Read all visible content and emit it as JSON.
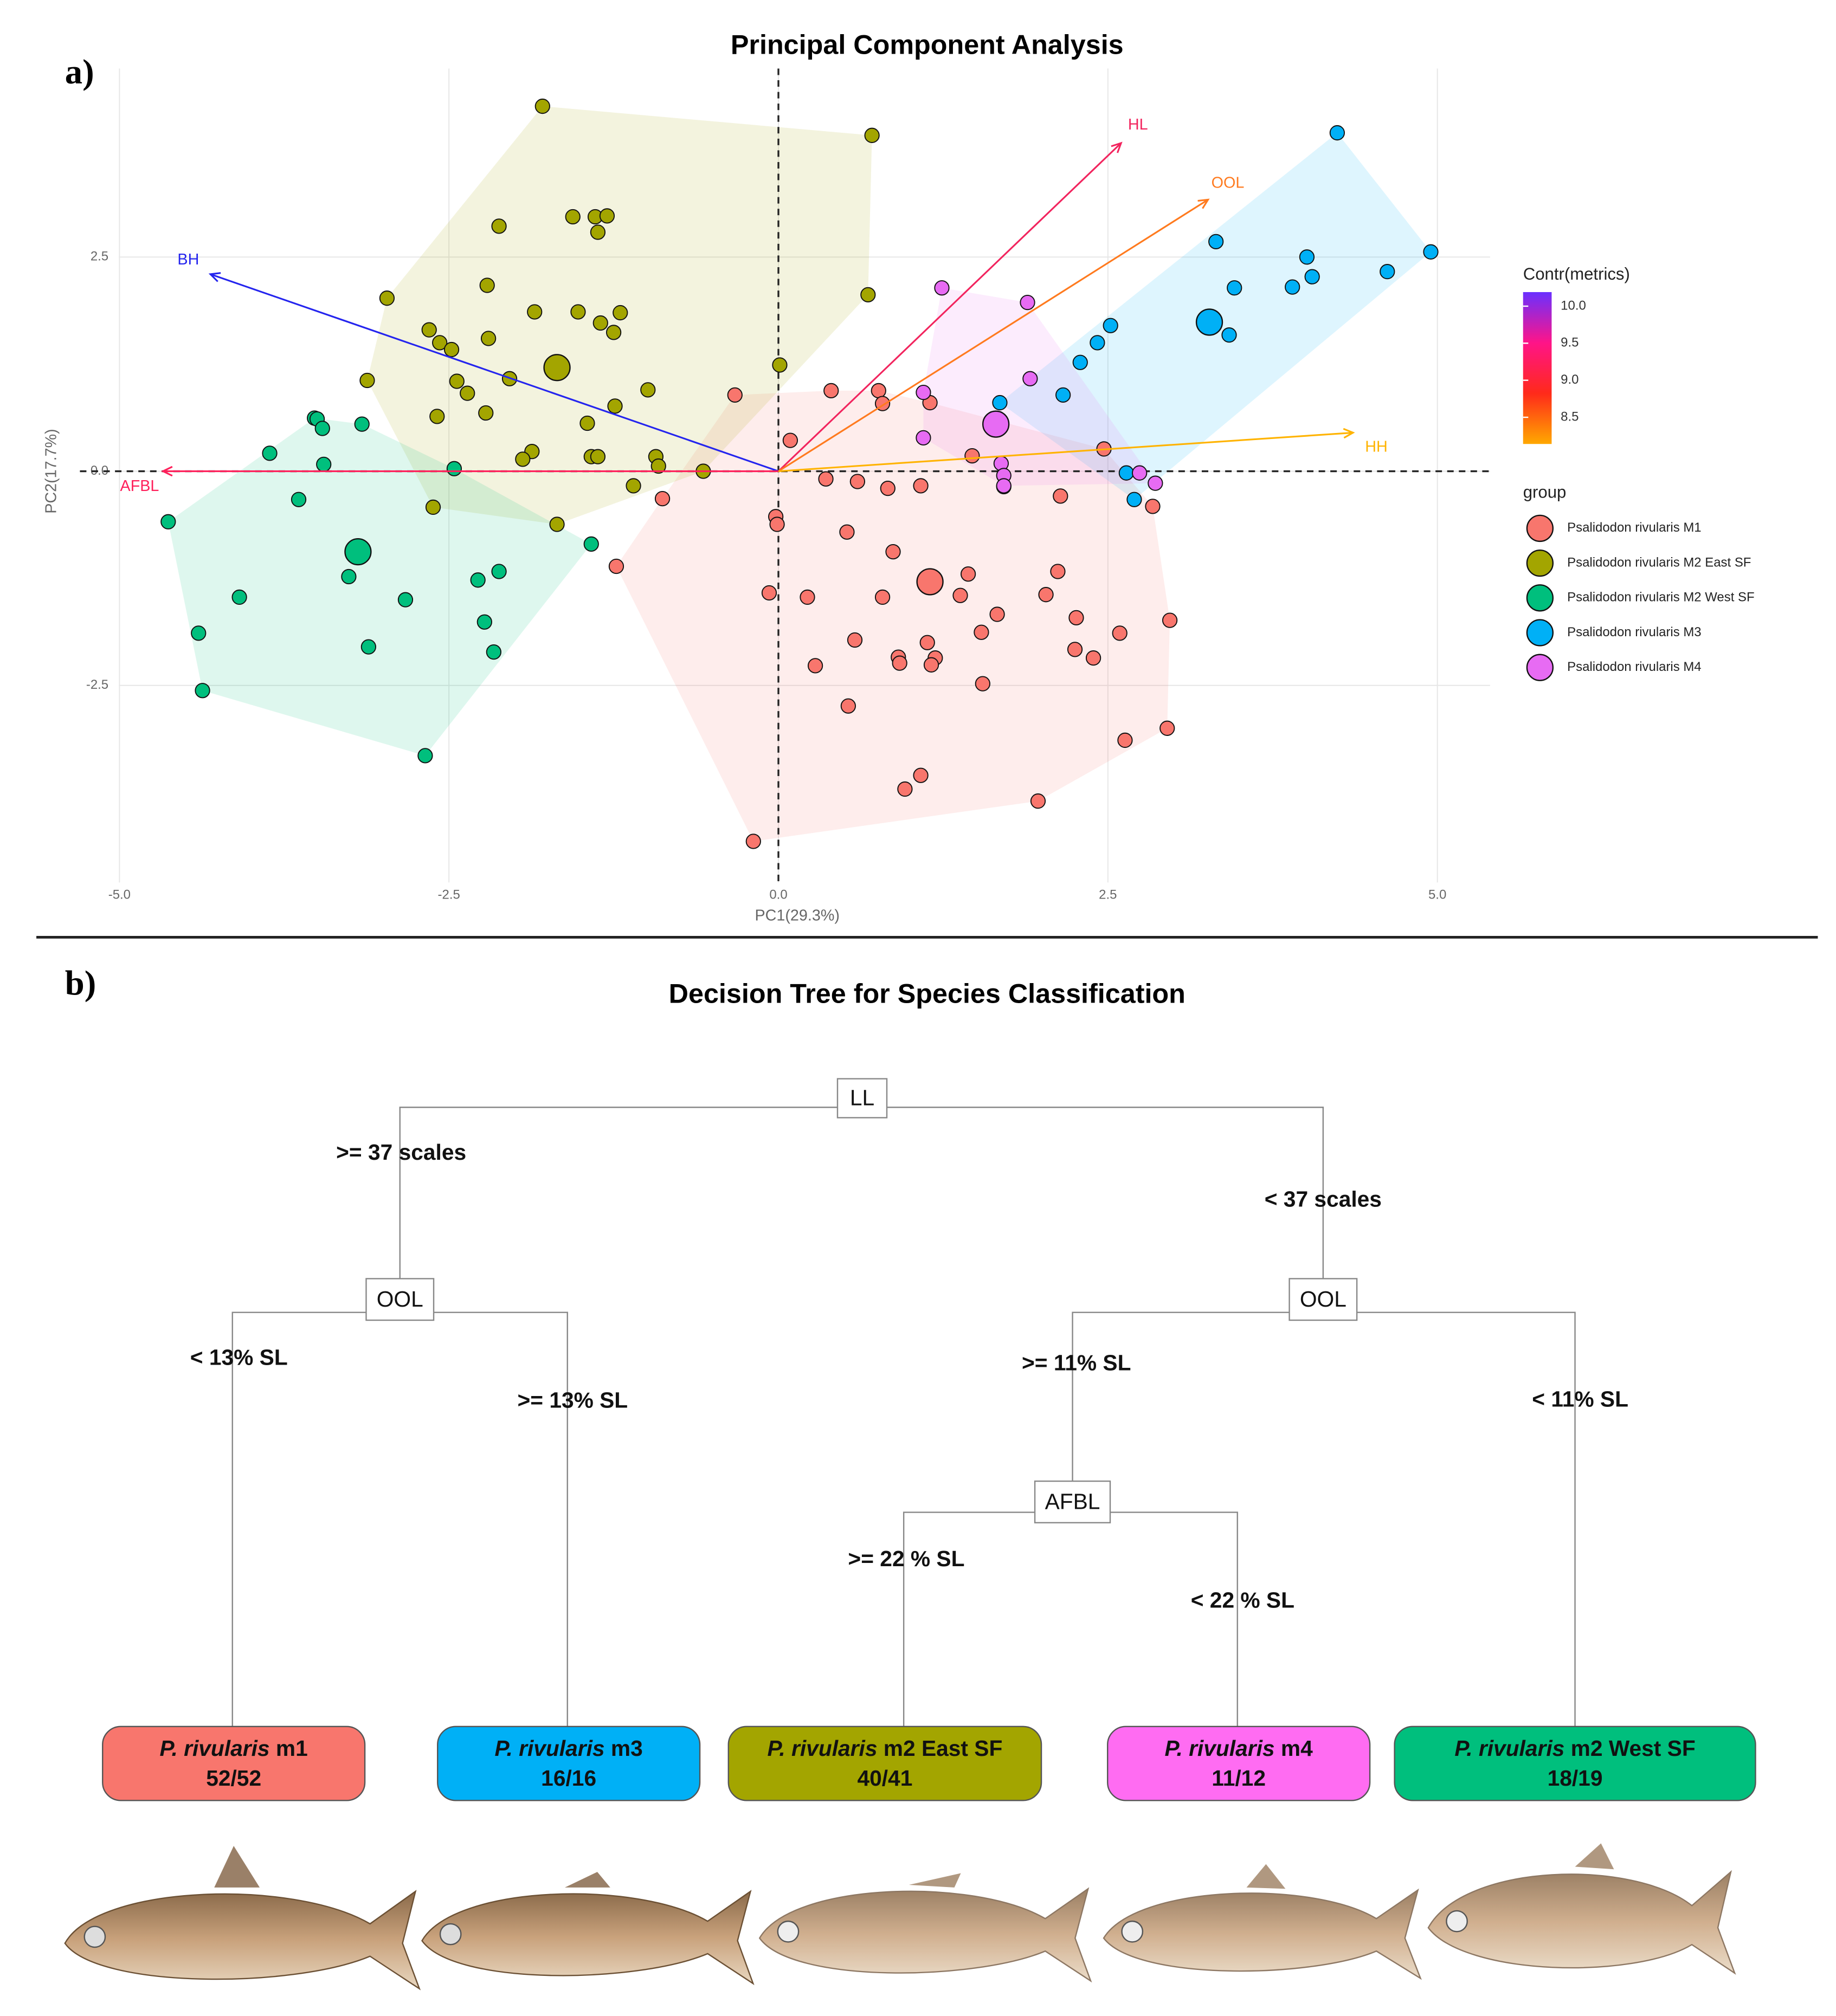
{
  "chart_data": {
    "type": "scatter",
    "title": "Principal Component Analysis",
    "xlabel": "PC1(29.3%)",
    "ylabel": "PC2(17.7%)",
    "xlim": [
      -5.3,
      5.4
    ],
    "ylim": [
      -4.8,
      4.7
    ],
    "xticks": [
      {
        "value": -5,
        "label": "-5.0"
      },
      -2.5,
      {
        "value": 0,
        "label": "0.0"
      },
      2.5,
      {
        "value": 5,
        "label": "5.0"
      }
    ],
    "yticks": [
      -2.5,
      {
        "value": 0,
        "label": "0.0"
      },
      2.5
    ],
    "grid": true,
    "legend_title": "group",
    "series": [
      {
        "name": "Psalidodon rivularis M1",
        "color": "#f8766d",
        "x": [
          -0.33,
          0.4,
          0.09,
          0.76,
          0.79,
          1.15,
          0.36,
          0.6,
          0.83,
          1.08,
          1.47,
          1.71,
          2.14,
          2.47,
          2.84,
          -0.02,
          -0.01,
          0.52,
          0.87,
          -1.23,
          -0.88,
          -0.07,
          0.22,
          0.79,
          1.44,
          1.38,
          1.66,
          1.54,
          2.03,
          2.12,
          2.26,
          2.59,
          0.58,
          1.13,
          0.91,
          0.92,
          1.19,
          1.16,
          0.28,
          1.55,
          2.25,
          2.39,
          2.97,
          0.53,
          2.63,
          2.95,
          1.08,
          0.96,
          1.97,
          -0.19
        ],
        "values": [
          0.89,
          0.94,
          0.36,
          0.94,
          0.79,
          0.8,
          -0.09,
          -0.12,
          -0.2,
          -0.17,
          0.18,
          -0.18,
          -0.29,
          0.26,
          -0.41,
          -0.53,
          -0.62,
          -0.71,
          -0.94,
          -1.11,
          -0.32,
          -1.42,
          -1.47,
          -1.47,
          -1.2,
          -1.45,
          -1.67,
          -1.88,
          -1.44,
          -1.17,
          -1.71,
          -1.89,
          -1.97,
          -2.0,
          -2.17,
          -2.24,
          -2.18,
          -2.26,
          -2.27,
          -2.48,
          -2.08,
          -2.18,
          -1.74,
          -2.74,
          -3.14,
          -3.0,
          -3.55,
          -3.71,
          -3.85,
          -4.32
        ],
        "centroid_x": 1.15,
        "centroid_y": -1.29
      },
      {
        "name": "Psalidodon rivularis M2 East SF",
        "color": "#a3a500",
        "x": [
          -1.79,
          0.71,
          -1.56,
          -1.39,
          -1.3,
          -1.37,
          -2.12,
          -2.97,
          -2.21,
          0.68,
          -1.85,
          -1.52,
          -1.35,
          -1.2,
          -2.65,
          -2.57,
          -2.48,
          -2.2,
          -1.25,
          -3.12,
          -2.44,
          -2.36,
          -2.04,
          -2.22,
          -2.59,
          -1.45,
          -0.99,
          -1.24,
          0.01,
          -1.87,
          -1.94,
          -1.42,
          -1.37,
          -0.93,
          -0.91,
          -0.57,
          -1.1,
          -1.68,
          -2.62
        ],
        "values": [
          4.26,
          3.92,
          2.97,
          2.97,
          2.98,
          2.79,
          2.86,
          2.02,
          2.17,
          2.06,
          1.86,
          1.86,
          1.73,
          1.85,
          1.65,
          1.5,
          1.42,
          1.55,
          1.62,
          1.06,
          1.05,
          0.91,
          1.08,
          0.68,
          0.64,
          0.56,
          0.95,
          0.76,
          1.24,
          0.23,
          0.14,
          0.17,
          0.17,
          0.17,
          0.06,
          0.0,
          -0.17,
          -0.62,
          -0.42
        ],
        "centroid_x": -1.68,
        "centroid_y": 1.21
      },
      {
        "name": "Psalidodon rivularis M2 West SF",
        "color": "#00bf7d",
        "x": [
          -3.86,
          -3.52,
          -3.5,
          -3.46,
          -3.16,
          -3.45,
          -3.64,
          -2.46,
          -4.63,
          -1.42,
          -2.12,
          -2.28,
          -3.26,
          -4.09,
          -2.83,
          -4.4,
          -2.23,
          -3.11,
          -2.16,
          -4.37,
          -2.68
        ],
        "values": [
          0.21,
          0.62,
          0.61,
          0.5,
          0.55,
          0.08,
          -0.33,
          0.03,
          -0.59,
          -0.85,
          -1.17,
          -1.27,
          -1.23,
          -1.47,
          -1.5,
          -1.89,
          -1.76,
          -2.05,
          -2.11,
          -2.56,
          -3.32
        ],
        "centroid_x": -3.19,
        "centroid_y": -0.94
      },
      {
        "name": "Psalidodon rivularis M3",
        "color": "#00b0f6",
        "x": [
          4.24,
          3.32,
          4.95,
          4.01,
          4.62,
          4.05,
          3.9,
          3.46,
          2.52,
          2.42,
          2.29,
          3.42,
          2.16,
          1.68,
          2.64,
          2.7
        ],
        "values": [
          3.95,
          2.68,
          2.56,
          2.5,
          2.33,
          2.27,
          2.15,
          2.14,
          1.7,
          1.5,
          1.27,
          1.59,
          0.89,
          0.8,
          -0.02,
          -0.33
        ],
        "centroid_x": 3.27,
        "centroid_y": 1.74
      },
      {
        "name": "Psalidodon rivularis M4",
        "color": "#e76bf3",
        "x": [
          1.24,
          1.89,
          1.91,
          1.1,
          1.1,
          1.69,
          1.71,
          1.71,
          2.74,
          2.86
        ],
        "values": [
          2.14,
          1.97,
          1.08,
          0.92,
          0.39,
          0.09,
          -0.05,
          -0.17,
          -0.02,
          -0.14
        ],
        "centroid_x": 1.65,
        "centroid_y": 0.55
      }
    ],
    "loadings": [
      {
        "name": "HL",
        "x": 2.6,
        "y": 3.83,
        "color": "#f2245e"
      },
      {
        "name": "OOL",
        "x": 3.26,
        "y": 3.17,
        "color": "#ff7a1e"
      },
      {
        "name": "HH",
        "x": 4.36,
        "y": 0.45,
        "color": "#ffb300"
      },
      {
        "name": "BH",
        "x": -4.31,
        "y": 2.3,
        "color": "#2424ee"
      },
      {
        "name": "AFBL",
        "x": -4.67,
        "y": 0.0,
        "color": "#ff1f5a"
      }
    ],
    "colorbar": {
      "title": "Contr(metrics)",
      "lim": [
        8.14,
        10.19
      ],
      "ticks": [
        {
          "value": 10,
          "label": "10.0"
        },
        9.5,
        {
          "value": 9,
          "label": "9.0"
        },
        8.5
      ],
      "colors": [
        "#ffa800",
        "#ff2a1a",
        "#ff1488",
        "#6a30ff"
      ]
    }
  },
  "panel_labels": [
    "a)",
    "b)"
  ],
  "tree": {
    "title": "Decision Tree for Species Classification",
    "nodes": [
      "LL",
      "OOL",
      "OOL",
      "AFBL"
    ],
    "edges": [
      ">= 37 scales",
      "< 37 scales",
      "< 13% SL",
      ">= 13% SL",
      ">= 11% SL",
      "< 11% SL",
      ">= 22 % SL",
      "< 22 % SL"
    ],
    "leaves": [
      {
        "genus": "P. rivularis",
        "group": "m1",
        "count": "52/52",
        "color": "#f8766d"
      },
      {
        "genus": "P. rivularis",
        "group": "m3",
        "count": "16/16",
        "color": "#00b0f6"
      },
      {
        "genus": "P. rivularis",
        "group": "m2 East SF",
        "count": "40/41",
        "color": "#a3a500"
      },
      {
        "genus": "P. rivularis",
        "group": "m4",
        "count": "11/12",
        "color": "#ff6cf2"
      },
      {
        "genus": "P. rivularis",
        "group": "m2 West SF",
        "count": "18/19",
        "color": "#00bf7d"
      }
    ]
  }
}
